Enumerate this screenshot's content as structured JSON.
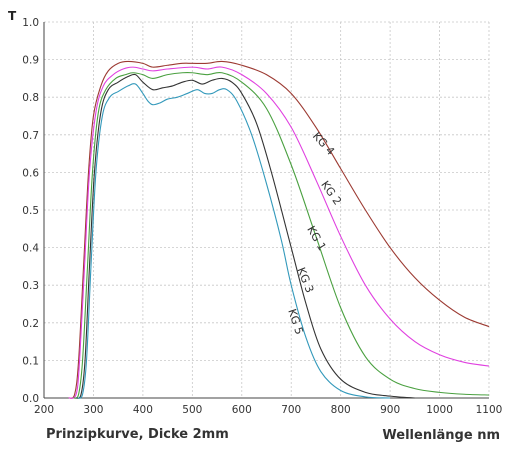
{
  "chart_data": {
    "type": "line",
    "ylabel": "T",
    "xlabel": "Wellenlänge nm",
    "caption": "Prinzipkurve, Dicke 2mm",
    "xlim": [
      200,
      1100
    ],
    "ylim": [
      0,
      1.0
    ],
    "x_ticks": [
      "200",
      "300",
      "400",
      "500",
      "600",
      "700",
      "800",
      "900",
      "1000",
      "1100"
    ],
    "y_ticks": [
      "0.0",
      "0.1",
      "0.2",
      "0.3",
      "0.4",
      "0.5",
      "0.6",
      "0.7",
      "0.8",
      "0.9",
      "1.0"
    ],
    "grid": true,
    "series": [
      {
        "name": "KG 4",
        "color": "#9c3a32",
        "label_at": {
          "x": 760,
          "y": 0.67,
          "angle": 48
        },
        "points": [
          [
            250,
            0
          ],
          [
            262,
            0.01
          ],
          [
            270,
            0.1
          ],
          [
            280,
            0.35
          ],
          [
            290,
            0.6
          ],
          [
            300,
            0.75
          ],
          [
            315,
            0.83
          ],
          [
            330,
            0.87
          ],
          [
            350,
            0.89
          ],
          [
            370,
            0.895
          ],
          [
            400,
            0.89
          ],
          [
            420,
            0.88
          ],
          [
            450,
            0.885
          ],
          [
            480,
            0.89
          ],
          [
            500,
            0.89
          ],
          [
            530,
            0.89
          ],
          [
            560,
            0.895
          ],
          [
            600,
            0.885
          ],
          [
            650,
            0.86
          ],
          [
            700,
            0.81
          ],
          [
            750,
            0.72
          ],
          [
            800,
            0.61
          ],
          [
            850,
            0.5
          ],
          [
            900,
            0.4
          ],
          [
            950,
            0.32
          ],
          [
            1000,
            0.26
          ],
          [
            1050,
            0.215
          ],
          [
            1100,
            0.19
          ]
        ]
      },
      {
        "name": "KG 2",
        "color": "#e040e0",
        "label_at": {
          "x": 775,
          "y": 0.54,
          "angle": 55
        },
        "points": [
          [
            250,
            0
          ],
          [
            265,
            0.01
          ],
          [
            272,
            0.1
          ],
          [
            282,
            0.35
          ],
          [
            292,
            0.6
          ],
          [
            305,
            0.76
          ],
          [
            320,
            0.83
          ],
          [
            340,
            0.86
          ],
          [
            360,
            0.875
          ],
          [
            380,
            0.88
          ],
          [
            400,
            0.875
          ],
          [
            420,
            0.87
          ],
          [
            450,
            0.875
          ],
          [
            500,
            0.88
          ],
          [
            530,
            0.875
          ],
          [
            560,
            0.88
          ],
          [
            600,
            0.86
          ],
          [
            650,
            0.81
          ],
          [
            700,
            0.72
          ],
          [
            750,
            0.58
          ],
          [
            800,
            0.43
          ],
          [
            850,
            0.3
          ],
          [
            900,
            0.21
          ],
          [
            950,
            0.15
          ],
          [
            1000,
            0.115
          ],
          [
            1050,
            0.095
          ],
          [
            1100,
            0.085
          ]
        ]
      },
      {
        "name": "KG 1",
        "color": "#4aa040",
        "label_at": {
          "x": 745,
          "y": 0.42,
          "angle": 60
        },
        "points": [
          [
            260,
            0
          ],
          [
            270,
            0.01
          ],
          [
            278,
            0.1
          ],
          [
            288,
            0.35
          ],
          [
            298,
            0.6
          ],
          [
            310,
            0.76
          ],
          [
            325,
            0.82
          ],
          [
            345,
            0.85
          ],
          [
            365,
            0.86
          ],
          [
            380,
            0.865
          ],
          [
            400,
            0.86
          ],
          [
            420,
            0.85
          ],
          [
            450,
            0.86
          ],
          [
            480,
            0.865
          ],
          [
            500,
            0.865
          ],
          [
            530,
            0.86
          ],
          [
            560,
            0.865
          ],
          [
            600,
            0.84
          ],
          [
            650,
            0.77
          ],
          [
            700,
            0.62
          ],
          [
            750,
            0.43
          ],
          [
            800,
            0.24
          ],
          [
            850,
            0.11
          ],
          [
            900,
            0.05
          ],
          [
            950,
            0.025
          ],
          [
            1000,
            0.015
          ],
          [
            1050,
            0.01
          ],
          [
            1100,
            0.008
          ]
        ]
      },
      {
        "name": "KG 3",
        "color": "#333333",
        "label_at": {
          "x": 722,
          "y": 0.31,
          "angle": 68
        },
        "points": [
          [
            265,
            0
          ],
          [
            275,
            0.01
          ],
          [
            283,
            0.1
          ],
          [
            292,
            0.35
          ],
          [
            302,
            0.6
          ],
          [
            315,
            0.76
          ],
          [
            330,
            0.82
          ],
          [
            350,
            0.84
          ],
          [
            370,
            0.855
          ],
          [
            385,
            0.86
          ],
          [
            400,
            0.84
          ],
          [
            420,
            0.82
          ],
          [
            440,
            0.825
          ],
          [
            460,
            0.83
          ],
          [
            480,
            0.84
          ],
          [
            500,
            0.845
          ],
          [
            520,
            0.835
          ],
          [
            540,
            0.845
          ],
          [
            560,
            0.85
          ],
          [
            580,
            0.84
          ],
          [
            600,
            0.81
          ],
          [
            630,
            0.73
          ],
          [
            660,
            0.6
          ],
          [
            700,
            0.4
          ],
          [
            730,
            0.25
          ],
          [
            760,
            0.13
          ],
          [
            800,
            0.05
          ],
          [
            850,
            0.015
          ],
          [
            900,
            0.005
          ],
          [
            950,
            0
          ]
        ]
      },
      {
        "name": "KG 5",
        "color": "#3399bb",
        "label_at": {
          "x": 702,
          "y": 0.2,
          "angle": 72
        },
        "points": [
          [
            268,
            0
          ],
          [
            278,
            0.01
          ],
          [
            286,
            0.1
          ],
          [
            295,
            0.35
          ],
          [
            305,
            0.6
          ],
          [
            318,
            0.75
          ],
          [
            333,
            0.8
          ],
          [
            350,
            0.815
          ],
          [
            370,
            0.83
          ],
          [
            385,
            0.835
          ],
          [
            400,
            0.81
          ],
          [
            410,
            0.79
          ],
          [
            420,
            0.78
          ],
          [
            435,
            0.785
          ],
          [
            450,
            0.795
          ],
          [
            470,
            0.8
          ],
          [
            490,
            0.81
          ],
          [
            510,
            0.82
          ],
          [
            525,
            0.81
          ],
          [
            540,
            0.81
          ],
          [
            555,
            0.82
          ],
          [
            570,
            0.82
          ],
          [
            590,
            0.79
          ],
          [
            620,
            0.7
          ],
          [
            650,
            0.57
          ],
          [
            680,
            0.42
          ],
          [
            700,
            0.3
          ],
          [
            730,
            0.16
          ],
          [
            760,
            0.07
          ],
          [
            800,
            0.02
          ],
          [
            850,
            0.003
          ],
          [
            900,
            0
          ]
        ]
      }
    ]
  }
}
